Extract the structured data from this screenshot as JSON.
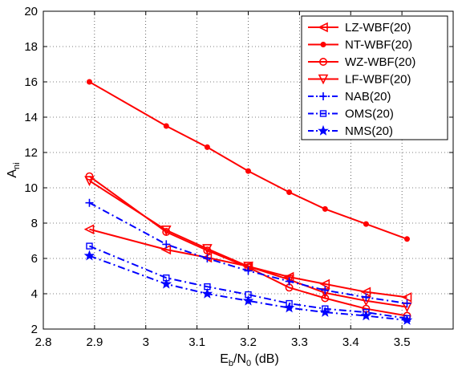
{
  "chart_data": {
    "type": "line",
    "x": [
      2.89,
      3.04,
      3.12,
      3.2,
      3.28,
      3.35,
      3.43,
      3.51
    ],
    "xlim": [
      2.8,
      3.6
    ],
    "ylim": [
      2,
      20
    ],
    "xticks": [
      "2.8",
      "2.9",
      "3",
      "3.1",
      "3.2",
      "3.3",
      "3.4",
      "3.5"
    ],
    "xtick_values": [
      2.8,
      2.9,
      3.0,
      3.1,
      3.2,
      3.3,
      3.4,
      3.5
    ],
    "yticks": [
      "2",
      "4",
      "6",
      "8",
      "10",
      "12",
      "14",
      "16",
      "18",
      "20"
    ],
    "ytick_values": [
      2,
      4,
      6,
      8,
      10,
      12,
      14,
      16,
      18,
      20
    ],
    "xlabel": {
      "base": "E",
      "sub1": "b",
      "mid": "/N",
      "sub2": "0",
      "tail": " (dB)"
    },
    "ylabel": {
      "base": "A",
      "sub": "ni"
    },
    "grid": true,
    "legend_position": "top-right",
    "series": [
      {
        "name": "LZ-WBF(20)",
        "color": "#ff0000",
        "linestyle": "solid",
        "marker": "triangle-left",
        "values": [
          7.65,
          6.5,
          6.05,
          5.55,
          4.95,
          4.55,
          4.1,
          3.8
        ]
      },
      {
        "name": "NT-WBF(20)",
        "color": "#ff0000",
        "linestyle": "solid",
        "marker": "dot",
        "values": [
          16.0,
          13.5,
          12.3,
          10.95,
          9.75,
          8.8,
          7.95,
          7.1
        ]
      },
      {
        "name": "WZ-WBF(20)",
        "color": "#ff0000",
        "linestyle": "solid",
        "marker": "circle",
        "values": [
          10.65,
          7.5,
          6.45,
          5.5,
          4.35,
          3.75,
          3.15,
          2.75
        ]
      },
      {
        "name": "LF-WBF(20)",
        "color": "#ff0000",
        "linestyle": "solid",
        "marker": "triangle-down",
        "values": [
          10.4,
          7.6,
          6.55,
          5.55,
          4.8,
          4.05,
          3.6,
          3.25
        ]
      },
      {
        "name": "NAB(20)",
        "color": "#0000ff",
        "linestyle": "dashdot",
        "marker": "plus",
        "values": [
          9.15,
          6.8,
          6.0,
          5.3,
          4.7,
          4.2,
          3.8,
          3.45
        ]
      },
      {
        "name": "OMS(20)",
        "color": "#0000ff",
        "linestyle": "dashdot",
        "marker": "square",
        "values": [
          6.7,
          4.9,
          4.4,
          3.95,
          3.45,
          3.15,
          2.95,
          2.6
        ]
      },
      {
        "name": "NMS(20)",
        "color": "#0000ff",
        "linestyle": "dashdot",
        "marker": "star",
        "values": [
          6.15,
          4.55,
          4.0,
          3.6,
          3.2,
          2.95,
          2.75,
          2.5
        ]
      }
    ]
  }
}
